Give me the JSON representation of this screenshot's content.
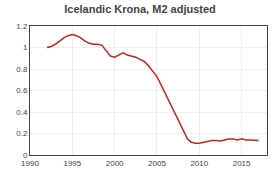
{
  "chart_data": {
    "type": "line",
    "title": "Icelandic Krona, M2 adjusted",
    "x": [
      1992.0,
      1992.5,
      1993.0,
      1993.5,
      1994.0,
      1994.5,
      1995.0,
      1995.5,
      1996.0,
      1996.5,
      1997.0,
      1997.5,
      1998.0,
      1998.5,
      1999.0,
      1999.5,
      2000.0,
      2000.5,
      2001.0,
      2001.5,
      2002.0,
      2002.5,
      2003.0,
      2003.5,
      2004.0,
      2004.5,
      2005.0,
      2005.5,
      2006.0,
      2006.5,
      2007.0,
      2007.5,
      2008.0,
      2008.3,
      2008.6,
      2009.0,
      2009.5,
      2010.0,
      2010.5,
      2011.0,
      2011.5,
      2012.0,
      2012.5,
      2013.0,
      2013.5,
      2014.0,
      2014.5,
      2015.0,
      2015.5,
      2016.0,
      2016.5,
      2017.0
    ],
    "values": [
      1.0,
      1.01,
      1.03,
      1.06,
      1.09,
      1.11,
      1.12,
      1.11,
      1.09,
      1.06,
      1.04,
      1.03,
      1.03,
      1.02,
      0.97,
      0.92,
      0.91,
      0.93,
      0.95,
      0.93,
      0.92,
      0.91,
      0.89,
      0.87,
      0.83,
      0.78,
      0.73,
      0.65,
      0.57,
      0.49,
      0.41,
      0.33,
      0.25,
      0.2,
      0.15,
      0.12,
      0.11,
      0.11,
      0.12,
      0.13,
      0.135,
      0.135,
      0.13,
      0.14,
      0.15,
      0.15,
      0.14,
      0.15,
      0.14,
      0.14,
      0.135,
      0.135
    ],
    "color": "#cc2222",
    "xlim": [
      1990,
      2018
    ],
    "ylim": [
      0,
      1.2
    ],
    "xticks": [
      1990,
      1995,
      2000,
      2005,
      2010,
      2015
    ],
    "yticks": [
      0,
      0.2,
      0.4,
      0.6,
      0.8,
      1,
      1.2
    ],
    "grid": true
  }
}
